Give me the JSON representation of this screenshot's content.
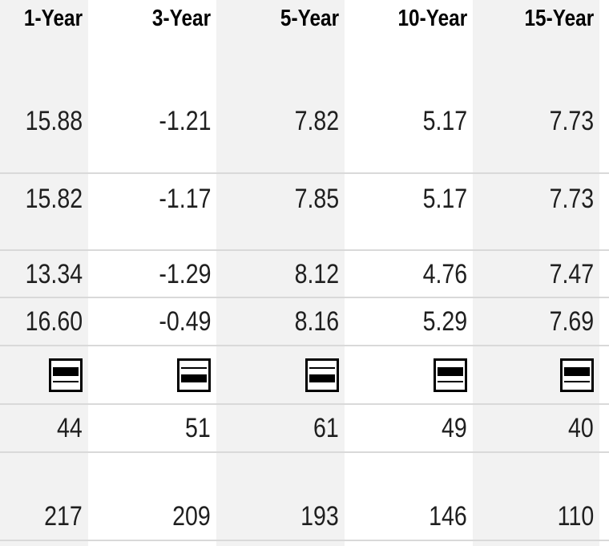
{
  "table": {
    "description": "Trailing returns comparison table with performance quartile rank icons",
    "columns": [
      {
        "label": "1-Year"
      },
      {
        "label": "3-Year"
      },
      {
        "label": "5-Year"
      },
      {
        "label": "10-Year"
      },
      {
        "label": "15-Year"
      }
    ],
    "rows": [
      {
        "id": "return-row-1",
        "type": "values",
        "values": [
          "15.88",
          "-1.21",
          "7.82",
          "5.17",
          "7.73"
        ]
      },
      {
        "id": "return-row-2",
        "type": "values",
        "values": [
          "15.82",
          "-1.17",
          "7.85",
          "5.17",
          "7.73"
        ]
      },
      {
        "id": "return-row-3",
        "type": "values",
        "values": [
          "13.34",
          "-1.29",
          "8.12",
          "4.76",
          "7.47"
        ]
      },
      {
        "id": "return-row-4",
        "type": "values",
        "values": [
          "16.60",
          "-0.49",
          "8.16",
          "5.29",
          "7.69"
        ]
      },
      {
        "id": "rank-quartile-row",
        "type": "quartile",
        "quartiles": [
          2,
          3,
          3,
          2,
          2
        ],
        "icon_name": "performance-quartile-icon"
      },
      {
        "id": "percentile-rank-row",
        "type": "values",
        "values": [
          "44",
          "51",
          "61",
          "49",
          "40"
        ]
      },
      {
        "id": "fund-count-row",
        "type": "values",
        "values": [
          "217",
          "209",
          "193",
          "146",
          "110"
        ]
      }
    ],
    "colors": {
      "stripe_bg": "#f2f2f2",
      "row_divider": "#d9d9d9",
      "value_text": "#1f1f1f",
      "header_text": "#000000",
      "quartile_fill": "#000000"
    }
  }
}
